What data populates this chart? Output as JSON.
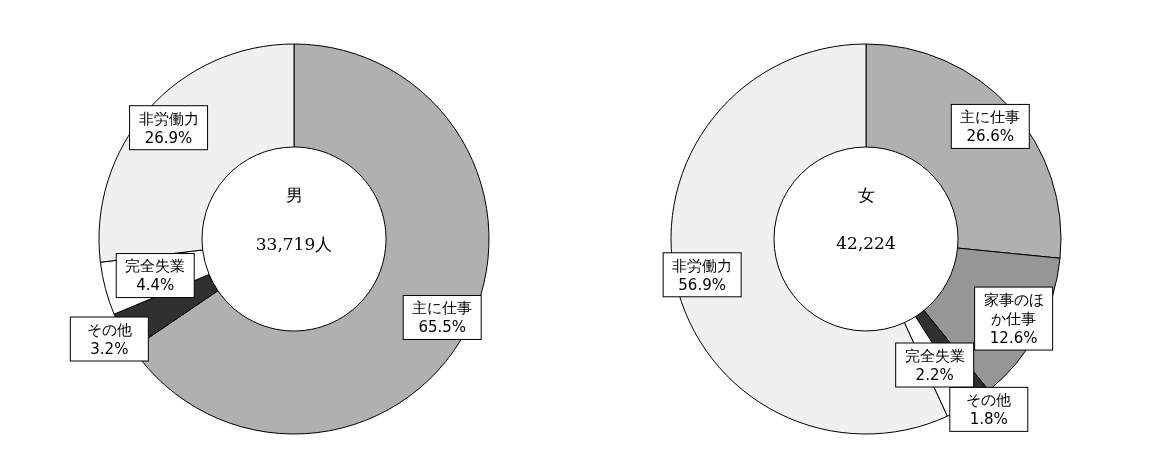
{
  "chart_data": [
    {
      "type": "donut",
      "title": "男",
      "subtitle": "33,719人",
      "categories": [
        "主に仕事",
        "その他",
        "完全失業",
        "非労働力"
      ],
      "values": [
        65.5,
        3.2,
        4.4,
        26.9
      ],
      "value_labels": [
        "65.5%",
        "3.2%",
        "4.4%",
        "26.9%"
      ],
      "colors": [
        "#b0b0b0",
        "#303030",
        "#ffffff",
        "#f0f0f0"
      ],
      "legend": false
    },
    {
      "type": "donut",
      "title": "女",
      "subtitle": "42,224",
      "categories": [
        "主に仕事",
        "家事のほか仕事",
        "その他",
        "完全失業",
        "非労働力"
      ],
      "values": [
        26.6,
        12.6,
        1.8,
        2.2,
        56.9
      ],
      "value_labels": [
        "26.6%",
        "12.6%",
        "1.8%",
        "2.2%",
        "56.9%"
      ],
      "colors": [
        "#b0b0b0",
        "#969696",
        "#303030",
        "#ffffff",
        "#f0f0f0"
      ],
      "legend": false
    }
  ]
}
